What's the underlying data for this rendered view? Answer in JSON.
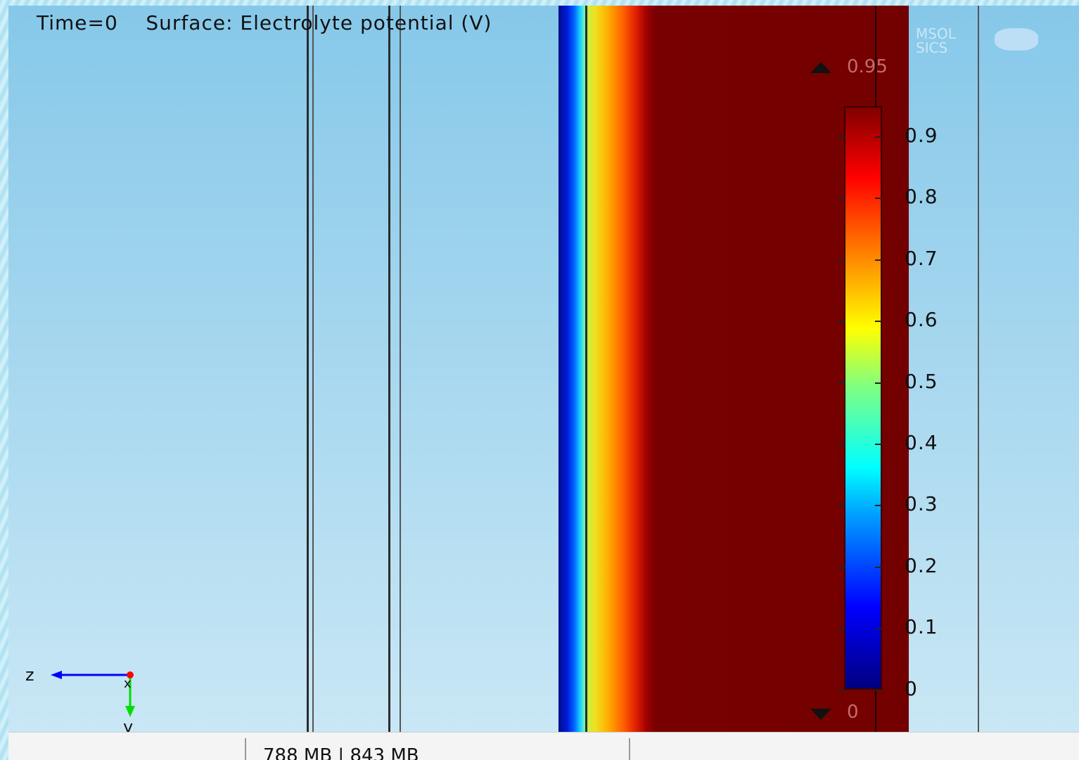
{
  "plot": {
    "title": "Time=0    Surface: Electrolyte potential (V)"
  },
  "colorbar": {
    "max_label": "0.95",
    "min_label": "0",
    "ticks": [
      "0.9",
      "0.8",
      "0.7",
      "0.6",
      "0.5",
      "0.4",
      "0.3",
      "0.2",
      "0.1",
      "0"
    ]
  },
  "axes": {
    "z_label": "z",
    "x_label": "x",
    "y_label": "y"
  },
  "logo": {
    "line1": "MSOL",
    "line2": "SICS"
  },
  "status": {
    "memory": "788 MB | 843 MB"
  },
  "colors": {
    "z_axis": "#0000ff",
    "y_axis": "#00dd00",
    "x_axis": "#ff0000"
  }
}
